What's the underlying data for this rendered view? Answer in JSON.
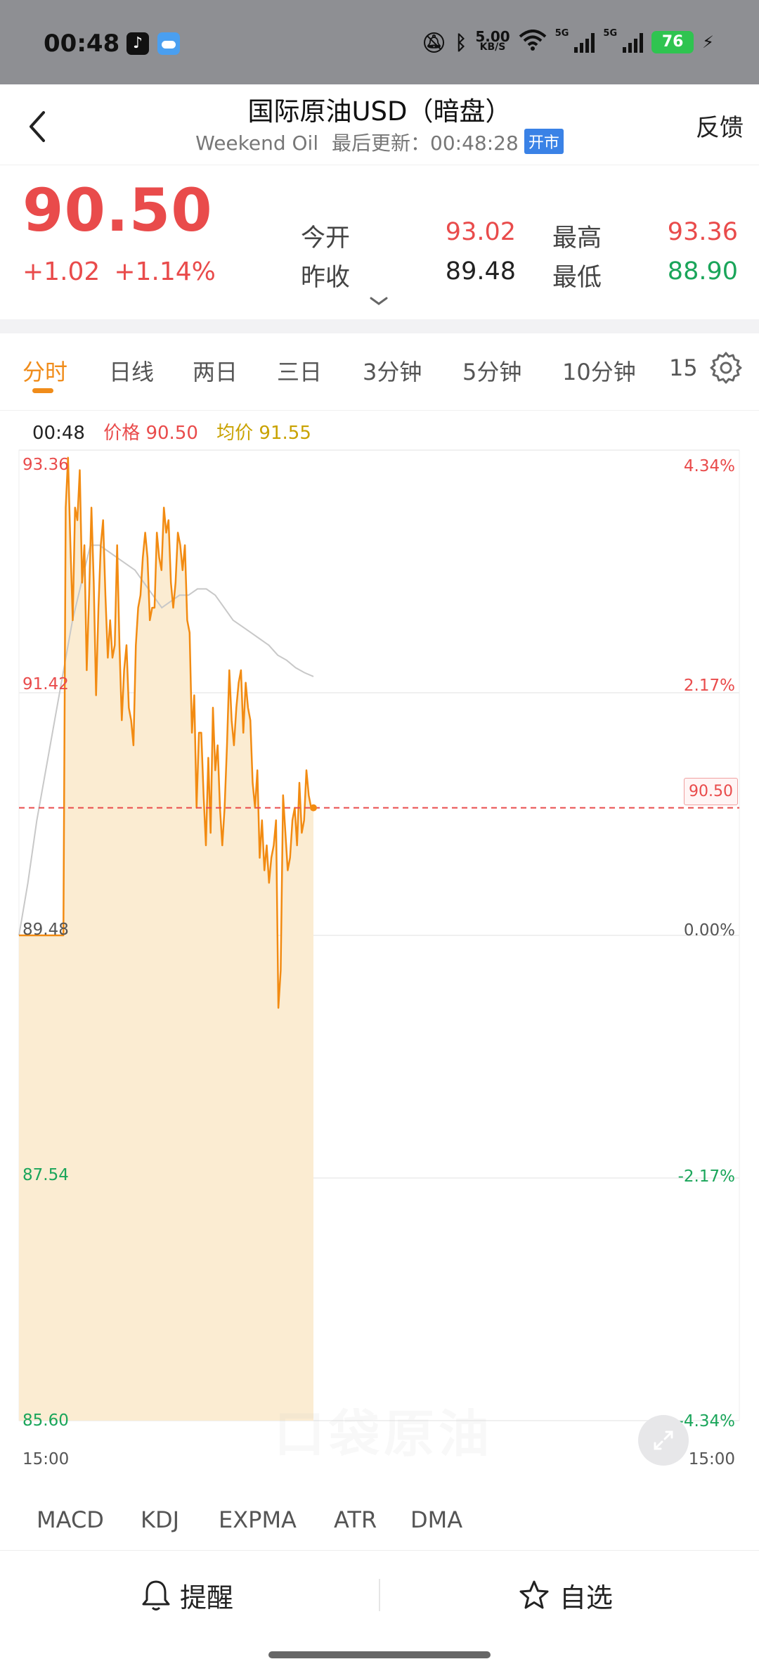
{
  "status_bar": {
    "time": "00:48",
    "net_speed_value": "5.00",
    "net_speed_unit": "KB/S",
    "battery": "76",
    "network_a": "5G",
    "network_b": "5G"
  },
  "header": {
    "title": "国际原油USD（暗盘）",
    "subtitle_en": "Weekend Oil",
    "updated_label": "最后更新：",
    "updated_time": "00:48:28",
    "market_status": "开市",
    "feedback": "反馈"
  },
  "quote": {
    "price": "90.50",
    "change": "+1.02",
    "change_pct": "+1.14%",
    "open_label": "今开",
    "open": "93.02",
    "prev_close_label": "昨收",
    "prev_close": "89.48",
    "high_label": "最高",
    "high": "93.36",
    "low_label": "最低",
    "low": "88.90"
  },
  "tabs": [
    "分时",
    "日线",
    "两日",
    "三日",
    "3分钟",
    "5分钟",
    "10分钟",
    "15"
  ],
  "active_tab": "分时",
  "chart_info": {
    "time": "00:48",
    "price_label": "价格 90.50",
    "avg_label": "均价 91.55"
  },
  "chart_data": {
    "type": "line",
    "y_ticks_left": [
      "93.36",
      "91.42",
      "89.48",
      "87.54",
      "85.60"
    ],
    "y_ticks_right": [
      "4.34%",
      "2.17%",
      "0.00%",
      "-2.17%",
      "-4.34%"
    ],
    "ylim": [
      85.6,
      93.36
    ],
    "prev_close": 89.48,
    "last_price_label": "90.50",
    "x_start_label": "15:00",
    "x_end_label": "15:00",
    "price_series": [
      89.48,
      89.48,
      89.48,
      89.48,
      89.48,
      89.48,
      89.48,
      89.48,
      89.48,
      89.48,
      89.48,
      89.48,
      89.48,
      89.48,
      89.48,
      89.48,
      89.48,
      89.48,
      89.48,
      89.48,
      92.9,
      93.3,
      92.6,
      92.0,
      92.9,
      92.8,
      93.2,
      92.3,
      92.6,
      91.6,
      92.2,
      92.9,
      92.3,
      91.4,
      92.1,
      92.6,
      92.8,
      92.2,
      91.7,
      92.0,
      91.7,
      91.8,
      92.6,
      91.8,
      91.2,
      91.6,
      91.8,
      91.3,
      91.2,
      91.0,
      91.8,
      92.1,
      92.2,
      92.5,
      92.7,
      92.5,
      92.0,
      92.1,
      92.1,
      92.7,
      92.5,
      92.4,
      92.9,
      92.7,
      92.8,
      92.3,
      92.1,
      92.3,
      92.7,
      92.6,
      92.4,
      92.6,
      92.0,
      91.9,
      91.1,
      91.4,
      90.5,
      91.1,
      91.1,
      90.6,
      90.2,
      90.9,
      90.3,
      91.3,
      90.8,
      91.0,
      90.5,
      90.2,
      90.5,
      91.0,
      91.6,
      91.2,
      91.0,
      91.3,
      91.5,
      91.6,
      91.1,
      91.5,
      91.3,
      91.2,
      90.7,
      90.5,
      90.8,
      90.1,
      90.4,
      90.0,
      90.2,
      89.9,
      90.1,
      90.2,
      90.4,
      88.9,
      89.2,
      90.6,
      90.3,
      90.0,
      90.1,
      90.4,
      90.5,
      90.2,
      90.7,
      90.3,
      90.4,
      90.8,
      90.6,
      90.5,
      90.5
    ],
    "avg_series": [
      89.48,
      89.9,
      90.4,
      90.8,
      91.2,
      91.6,
      92.0,
      92.3,
      92.6,
      92.6,
      92.55,
      92.5,
      92.45,
      92.4,
      92.3,
      92.2,
      92.1,
      92.15,
      92.2,
      92.2,
      92.25,
      92.25,
      92.2,
      92.1,
      92.0,
      91.95,
      91.9,
      91.85,
      91.8,
      91.72,
      91.68,
      91.62,
      91.58,
      91.55
    ],
    "colors": {
      "price": "#f28b12",
      "fill": "#fbecd2",
      "avg": "#c8c8c8",
      "last_line": "#e94b4b",
      "up": "#e94b4b",
      "down": "#1aa55a"
    }
  },
  "indicators": [
    "MACD",
    "KDJ",
    "EXPMA",
    "ATR",
    "DMA"
  ],
  "bottom_bar": {
    "alert": "提醒",
    "watchlist": "自选"
  },
  "watermark": "口袋原油"
}
